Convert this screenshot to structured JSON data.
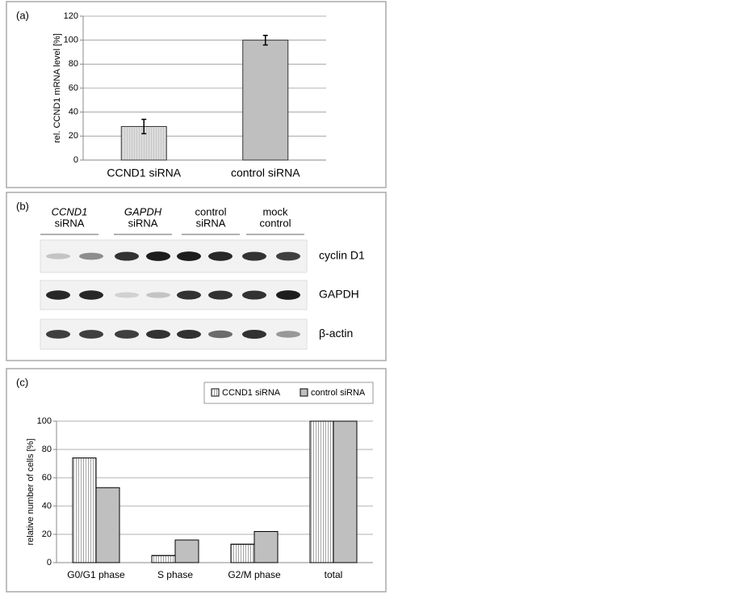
{
  "chart_data": [
    {
      "type": "bar",
      "panel_label": "(a)",
      "y_label": "rel. CCND1 mRNA level [%]",
      "categories": [
        "CCND1 siRNA",
        "control siRNA"
      ],
      "values": [
        28,
        100
      ],
      "errors": [
        6,
        4
      ],
      "colors": [
        "#dcdcdc",
        "#bfbfbf"
      ],
      "ylim": [
        0,
        120
      ],
      "yticks": [
        0,
        20,
        40,
        60,
        80,
        100,
        120
      ],
      "grid": true
    },
    {
      "type": "grouped_bar",
      "panel_label": "(c)",
      "y_label": "relative number of cells [%]",
      "categories": [
        "G0/G1 phase",
        "S phase",
        "G2/M phase",
        "total"
      ],
      "series": [
        {
          "name": "CCND1 siRNA",
          "color": "#ffffff",
          "values": [
            74,
            5,
            13,
            100
          ]
        },
        {
          "name": "control siRNA",
          "color": "#bfbfbf",
          "values": [
            53,
            16,
            22,
            100
          ]
        }
      ],
      "ylim": [
        0,
        100
      ],
      "yticks": [
        0,
        20,
        40,
        60,
        80,
        100
      ],
      "grid": true,
      "legend": "top-right"
    }
  ],
  "blot": {
    "panel_label": "(b)",
    "lanes": [
      [
        "CCND1",
        "siRNA"
      ],
      [
        "GAPDH",
        "siRNA"
      ],
      [
        "control",
        "siRNA"
      ],
      [
        "mock",
        "control"
      ]
    ],
    "proteins": [
      "cyclin D1",
      "GAPDH",
      "β-actin"
    ]
  }
}
